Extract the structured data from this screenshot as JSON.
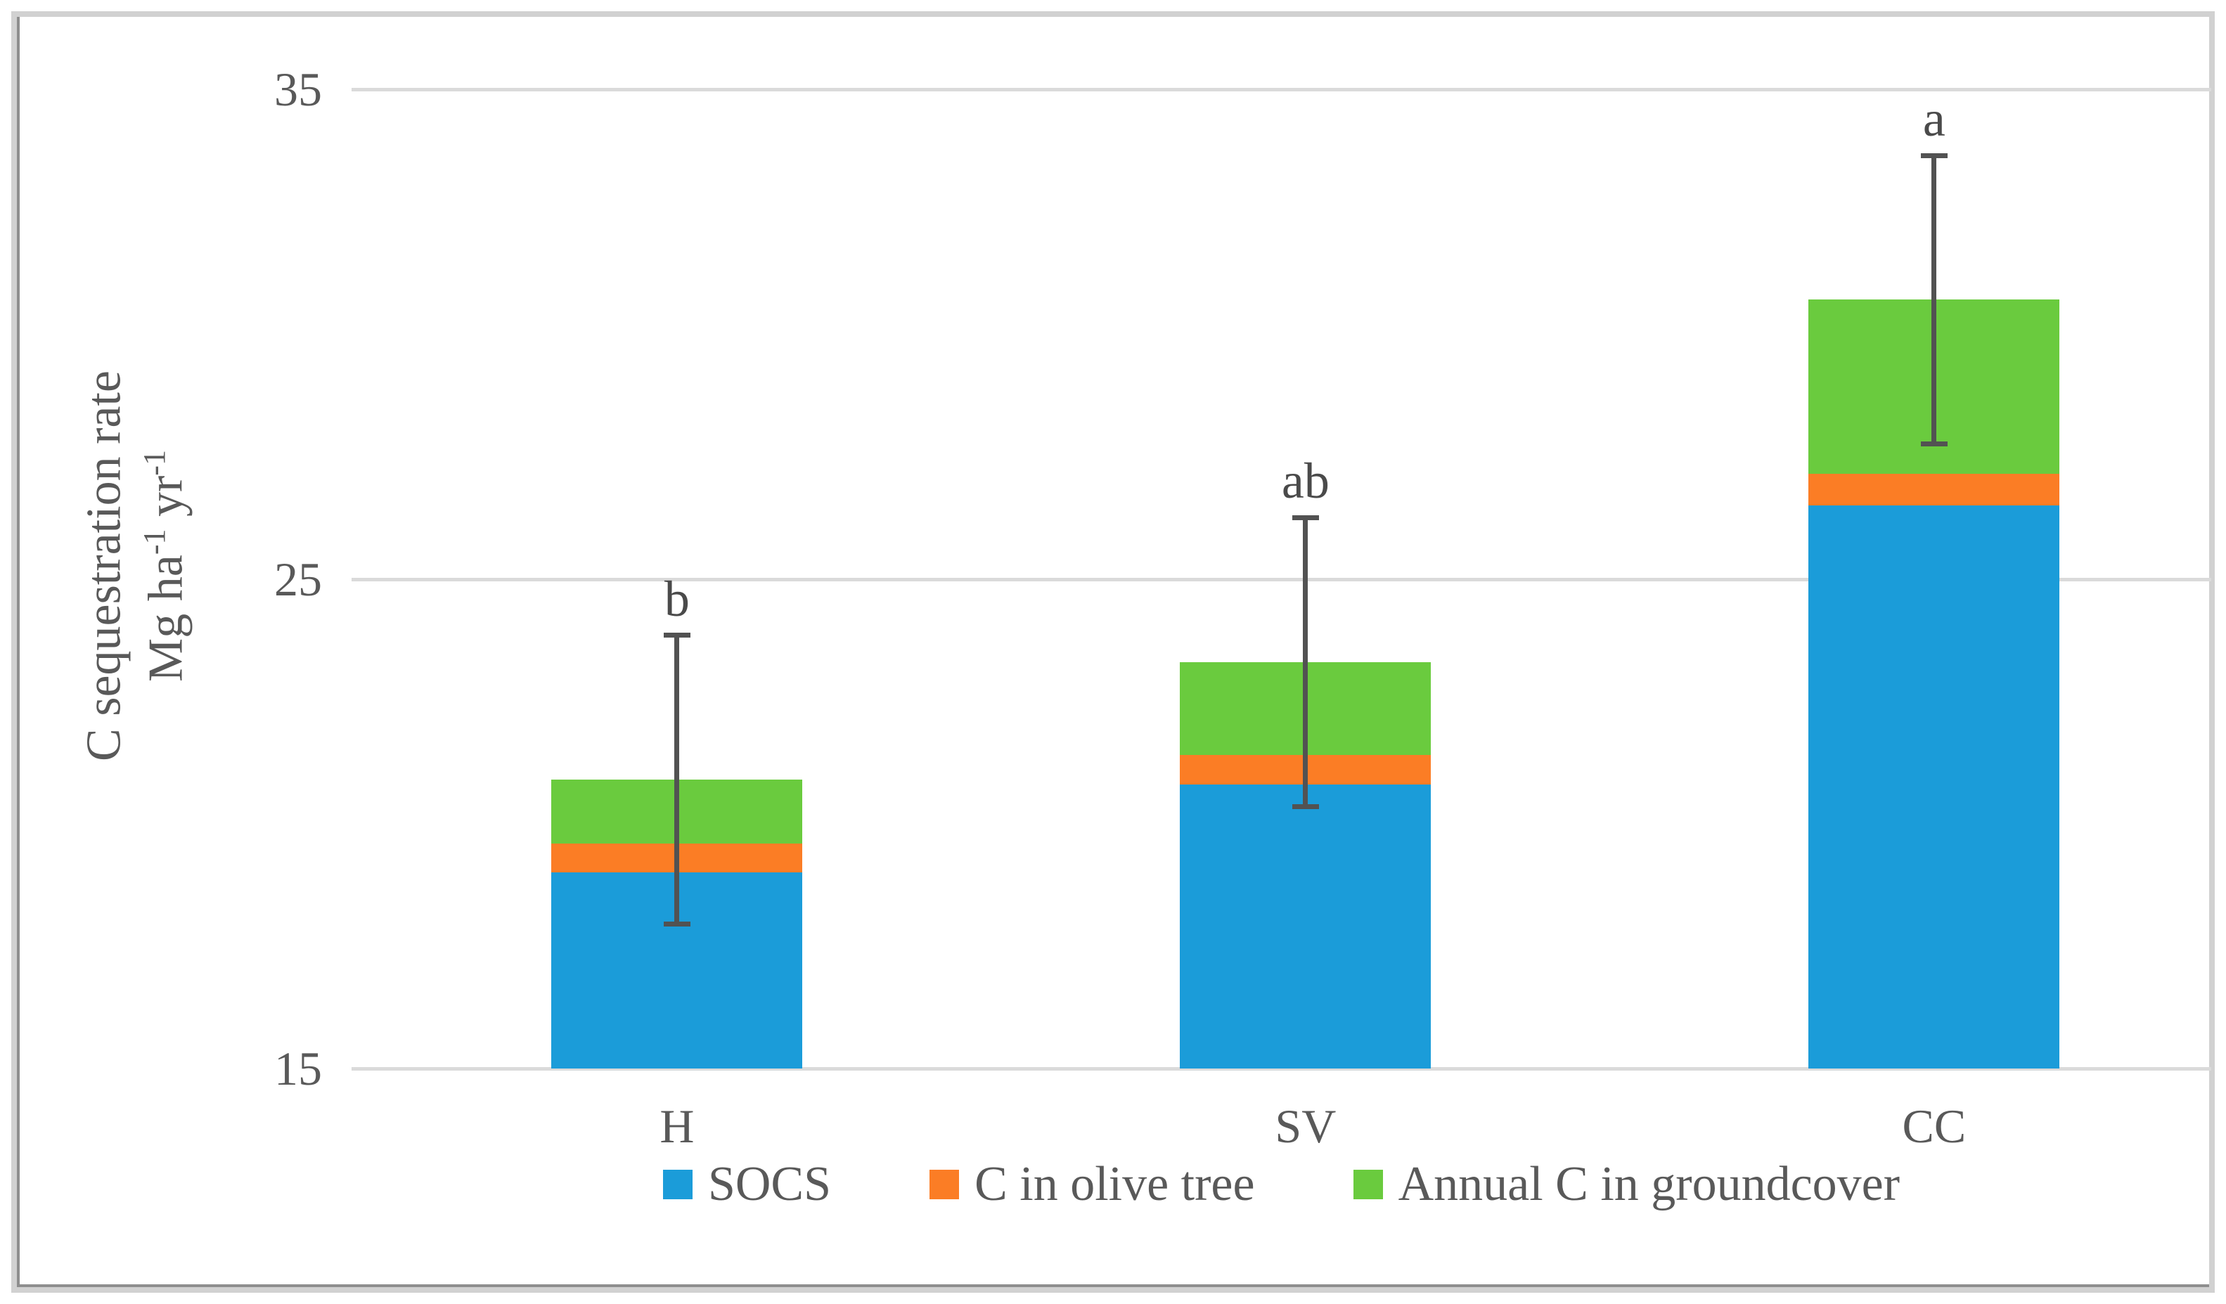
{
  "chart_data": {
    "type": "bar",
    "stacked": true,
    "title": "",
    "categories": [
      "H",
      "SV",
      "CC"
    ],
    "series": [
      {
        "name": "SOCS",
        "color": "#1B9CD9",
        "values": [
          19.0,
          20.8,
          26.5
        ]
      },
      {
        "name": "C in olive tree",
        "color": "#FB7D25",
        "values": [
          0.6,
          0.6,
          0.65
        ]
      },
      {
        "name": "Annual C in groundcover",
        "color": "#6ACB3E",
        "values": [
          1.3,
          1.9,
          3.55
        ]
      }
    ],
    "stack_totals": [
      20.9,
      23.3,
      30.7
    ],
    "error_bars": {
      "plus_minus": [
        2.95,
        2.95,
        2.95
      ],
      "color": "#525252"
    },
    "sig_letters": [
      "b",
      "ab",
      "a"
    ],
    "ylabel": "C sequestration rate Mg ha-1 yr-1",
    "xlabel": "",
    "ylim": [
      15,
      35
    ],
    "yticks": [
      35,
      25,
      15
    ],
    "grid": true,
    "gridline_color": "#DADADA",
    "legend_position": "bottom",
    "axis_text_color": "#595959",
    "layout": {
      "bar_centers_pct": [
        17.5,
        51.3,
        85.1
      ],
      "bar_width_pct": 13.5
    }
  },
  "y_axis": {
    "title_line1": "C sequestration rate",
    "title_line2_parts": [
      {
        "t": "Mg ha"
      },
      {
        "t": "-1",
        "sup": true
      },
      {
        "t": " yr"
      },
      {
        "t": "-1",
        "sup": true
      }
    ]
  }
}
